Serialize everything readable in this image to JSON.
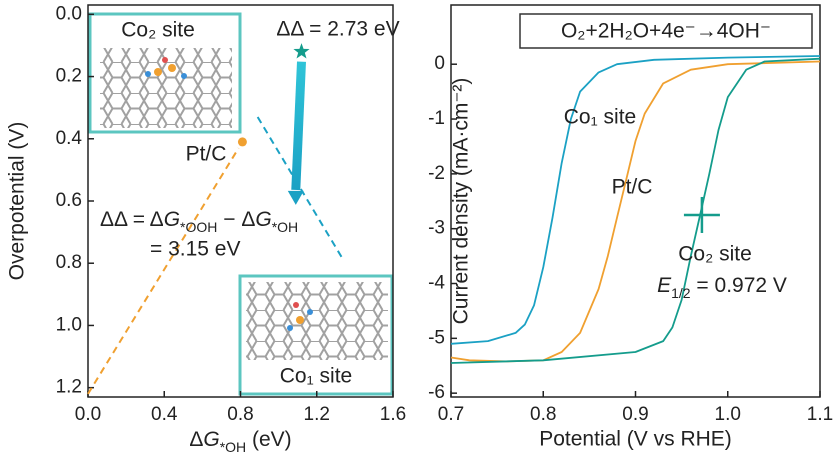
{
  "chart_data": [
    {
      "type": "scatter",
      "xlabel": [
        "Δ",
        "G",
        "*OH",
        " (eV)"
      ],
      "ylabel": "Overpotential (V)",
      "xlim": [
        0,
        1.6
      ],
      "xticks": [
        {
          "value": 0,
          "label": "0.0"
        },
        0.4,
        0.8,
        1.2,
        1.6
      ],
      "ylim": [
        -0.03,
        1.23
      ],
      "y_inverted": true,
      "yticks": [
        {
          "value": 0,
          "label": "0.0"
        },
        0.2,
        0.4,
        0.6,
        0.8,
        {
          "value": 1,
          "label": "1.0"
        },
        1.2
      ],
      "series": [
        {
          "name": "Pt/C",
          "color": "#f0a030",
          "marker": "circle",
          "x": [
            0.81
          ],
          "values": [
            0.41
          ]
        },
        {
          "name": "Co₁ site",
          "color": "#1ba1c4",
          "marker": "triangle",
          "x": [
            1.09
          ],
          "values": [
            0.59
          ]
        },
        {
          "name": "Co₂ site",
          "color": "#149c8c",
          "marker": "star",
          "x": [
            1.12
          ],
          "values": [
            0.12
          ]
        }
      ],
      "lines": [
        {
          "color": "#f0a030",
          "x": [
            0,
            0.79
          ],
          "values": [
            1.22,
            0.43
          ]
        },
        {
          "color": "#1ba1c4",
          "x": [
            0.89,
            1.34
          ],
          "values": [
            0.33,
            0.79
          ]
        }
      ],
      "delta_co2": "ΔΔ = 2.73 eV",
      "delta_definition": [
        "ΔΔ = Δ",
        "G",
        "*OOH",
        " − Δ",
        "G",
        "*OH"
      ],
      "delta_co1": "= 3.15 eV"
    },
    {
      "type": "line",
      "title": "O₂+2H₂O+4e⁻→4OH⁻",
      "xlabel": "Potential (V vs RHE)",
      "ylabel": "Current density (mA·cm⁻²)",
      "xlim": [
        0.7,
        1.1
      ],
      "xticks": [
        0.7,
        0.8,
        0.9,
        {
          "value": 1,
          "label": "1.0"
        },
        1.1
      ],
      "ylim": [
        -6.07,
        1.08
      ],
      "yticks": [
        -6,
        -5,
        -4,
        -3,
        -2,
        -1,
        0
      ],
      "series": [
        {
          "name": "Co₁ site",
          "color": "#1ba1c4",
          "x": [
            0.7,
            0.74,
            0.77,
            0.78,
            0.79,
            0.8,
            0.81,
            0.82,
            0.83,
            0.84,
            0.86,
            0.88,
            0.92,
            1.0,
            1.1
          ],
          "values": [
            -5.1,
            -5.05,
            -4.9,
            -4.75,
            -4.4,
            -3.7,
            -2.8,
            -1.8,
            -1.0,
            -0.5,
            -0.15,
            0.0,
            0.08,
            0.12,
            0.15
          ]
        },
        {
          "name": "Pt/C",
          "color": "#f0a030",
          "x": [
            0.7,
            0.72,
            0.76,
            0.8,
            0.82,
            0.84,
            0.86,
            0.87,
            0.88,
            0.89,
            0.9,
            0.91,
            0.93,
            0.96,
            1.0,
            1.1
          ],
          "values": [
            -5.35,
            -5.4,
            -5.42,
            -5.4,
            -5.25,
            -4.9,
            -4.1,
            -3.5,
            -2.8,
            -2.1,
            -1.4,
            -0.9,
            -0.35,
            -0.1,
            0.0,
            0.05
          ]
        },
        {
          "name": "Co₂ site",
          "color": "#149c8c",
          "x": [
            0.7,
            0.8,
            0.9,
            0.93,
            0.94,
            0.95,
            0.96,
            0.97,
            0.98,
            0.99,
            1.0,
            1.02,
            1.04,
            1.1
          ],
          "values": [
            -5.45,
            -5.4,
            -5.25,
            -5.05,
            -4.8,
            -4.3,
            -3.5,
            -2.75,
            -2.0,
            -1.2,
            -0.6,
            -0.1,
            0.05,
            0.1
          ]
        }
      ],
      "half_wave": {
        "label": [
          "E",
          "1/2",
          " = 0.972 V"
        ],
        "x": 0.972,
        "y": -2.75
      }
    }
  ]
}
